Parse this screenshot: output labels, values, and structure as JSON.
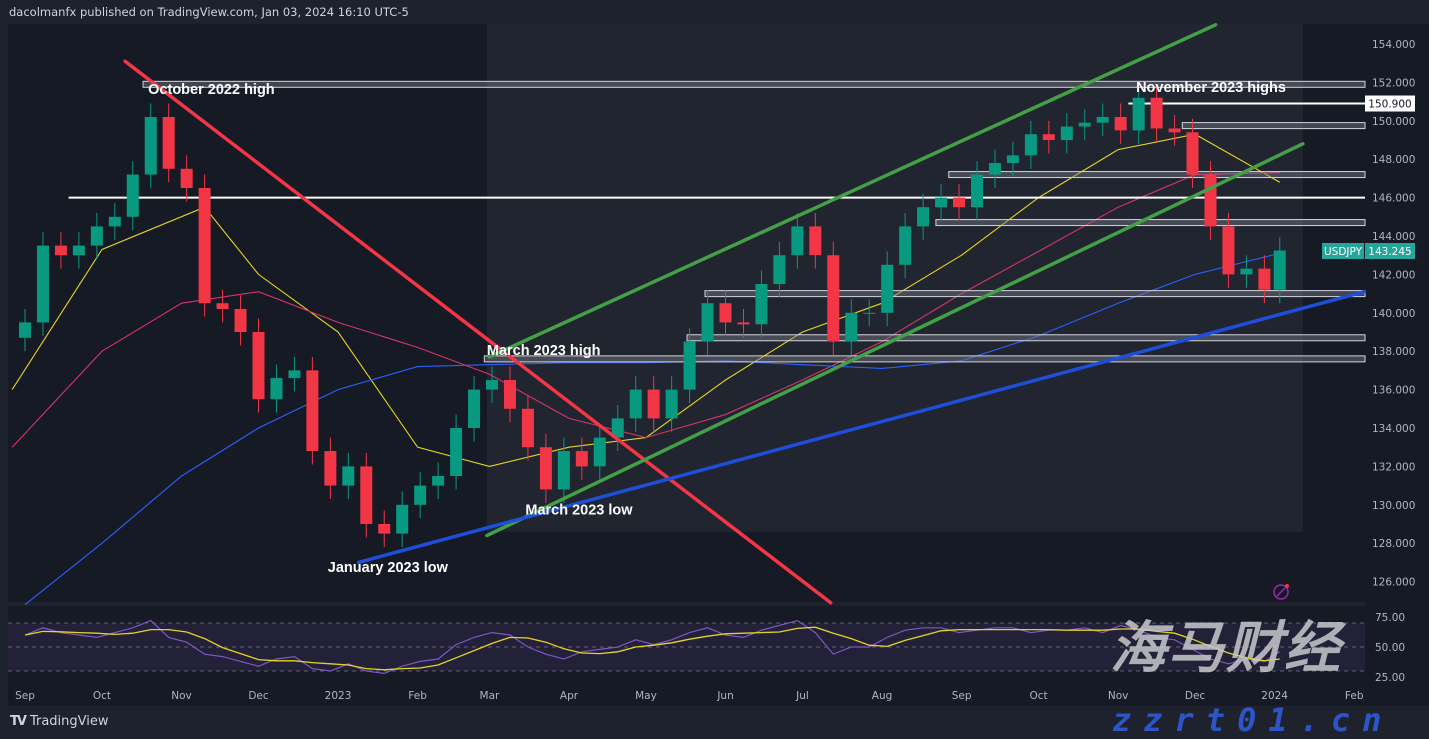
{
  "header": {
    "publisher_text": "dacolmanfx published on TradingView.com, Jan 03, 2024 16:10 UTC-5"
  },
  "footer": {
    "brand": "TradingView",
    "logo_glyph": "TV"
  },
  "watermark": {
    "cn_text": "海马财经",
    "site": "zzrt01.cn"
  },
  "colors": {
    "background": "#161a25",
    "up": "#089981",
    "down": "#f23645",
    "ma50": "#e6d424",
    "ma100": "#d6336c",
    "ma200": "#2962ff",
    "channel": "#43a047",
    "downtrend": "#f23645",
    "uptrend": "#1e4fd8",
    "rsi": "#7e57c2",
    "rsi_ma": "#e6d424",
    "symbol_tag": "#26a69a"
  },
  "chart_data": [
    {
      "type": "candlestick",
      "symbol": "USDJPY",
      "last_price": "143.245",
      "ylim": [
        125,
        155
      ],
      "yticks": [
        "126.000",
        "128.000",
        "130.000",
        "132.000",
        "134.000",
        "136.000",
        "138.000",
        "140.000",
        "142.000",
        "144.000",
        "146.000",
        "148.000",
        "150.000",
        "152.000",
        "154.000"
      ],
      "xticks": [
        {
          "date": "2022-09-01",
          "label": "Sep"
        },
        {
          "date": "2022-10-01",
          "label": "Oct"
        },
        {
          "date": "2022-11-01",
          "label": "Nov"
        },
        {
          "date": "2022-12-01",
          "label": "Dec"
        },
        {
          "date": "2023-01-01",
          "label": "2023"
        },
        {
          "date": "2023-02-01",
          "label": "Feb"
        },
        {
          "date": "2023-03-01",
          "label": "Mar"
        },
        {
          "date": "2023-04-01",
          "label": "Apr"
        },
        {
          "date": "2023-05-01",
          "label": "May"
        },
        {
          "date": "2023-06-01",
          "label": "Jun"
        },
        {
          "date": "2023-07-01",
          "label": "Jul"
        },
        {
          "date": "2023-08-01",
          "label": "Aug"
        },
        {
          "date": "2023-09-01",
          "label": "Sep"
        },
        {
          "date": "2023-10-01",
          "label": "Oct"
        },
        {
          "date": "2023-11-01",
          "label": "Nov"
        },
        {
          "date": "2023-12-01",
          "label": "Dec"
        },
        {
          "date": "2024-01-01",
          "label": "2024"
        },
        {
          "date": "2024-02-01",
          "label": "Feb"
        }
      ],
      "closes": [
        [
          "2022-09-01",
          139.5
        ],
        [
          "2022-09-08",
          143.5
        ],
        [
          "2022-09-15",
          143.0
        ],
        [
          "2022-09-22",
          143.5
        ],
        [
          "2022-09-29",
          144.5
        ],
        [
          "2022-10-06",
          145.0
        ],
        [
          "2022-10-13",
          147.2
        ],
        [
          "2022-10-20",
          150.2
        ],
        [
          "2022-10-27",
          147.5
        ],
        [
          "2022-11-03",
          146.5
        ],
        [
          "2022-11-10",
          140.5
        ],
        [
          "2022-11-17",
          140.2
        ],
        [
          "2022-11-24",
          139.0
        ],
        [
          "2022-12-01",
          135.5
        ],
        [
          "2022-12-08",
          136.6
        ],
        [
          "2022-12-15",
          137.0
        ],
        [
          "2022-12-22",
          132.8
        ],
        [
          "2022-12-29",
          131.0
        ],
        [
          "2023-01-05",
          132.0
        ],
        [
          "2023-01-12",
          129.0
        ],
        [
          "2023-01-19",
          128.5
        ],
        [
          "2023-01-26",
          130.0
        ],
        [
          "2023-02-02",
          131.0
        ],
        [
          "2023-02-09",
          131.5
        ],
        [
          "2023-02-16",
          134.0
        ],
        [
          "2023-02-23",
          136.0
        ],
        [
          "2023-03-02",
          136.5
        ],
        [
          "2023-03-09",
          135.0
        ],
        [
          "2023-03-16",
          133.0
        ],
        [
          "2023-03-23",
          130.8
        ],
        [
          "2023-03-30",
          132.8
        ],
        [
          "2023-04-06",
          132.0
        ],
        [
          "2023-04-13",
          133.5
        ],
        [
          "2023-04-20",
          134.5
        ],
        [
          "2023-04-27",
          136.0
        ],
        [
          "2023-05-04",
          134.5
        ],
        [
          "2023-05-11",
          136.0
        ],
        [
          "2023-05-18",
          138.5
        ],
        [
          "2023-05-25",
          140.5
        ],
        [
          "2023-06-01",
          139.5
        ],
        [
          "2023-06-08",
          139.4
        ],
        [
          "2023-06-15",
          141.5
        ],
        [
          "2023-06-22",
          143.0
        ],
        [
          "2023-06-29",
          144.5
        ],
        [
          "2023-07-06",
          143.0
        ],
        [
          "2023-07-13",
          138.5
        ],
        [
          "2023-07-20",
          140.0
        ],
        [
          "2023-07-27",
          140.0
        ],
        [
          "2023-08-03",
          142.5
        ],
        [
          "2023-08-10",
          144.5
        ],
        [
          "2023-08-17",
          145.5
        ],
        [
          "2023-08-24",
          146.0
        ],
        [
          "2023-08-31",
          145.5
        ],
        [
          "2023-09-07",
          147.2
        ],
        [
          "2023-09-14",
          147.8
        ],
        [
          "2023-09-21",
          148.2
        ],
        [
          "2023-09-28",
          149.3
        ],
        [
          "2023-10-05",
          149.0
        ],
        [
          "2023-10-12",
          149.7
        ],
        [
          "2023-10-19",
          149.9
        ],
        [
          "2023-10-26",
          150.2
        ],
        [
          "2023-11-02",
          149.5
        ],
        [
          "2023-11-09",
          151.2
        ],
        [
          "2023-11-16",
          149.6
        ],
        [
          "2023-11-23",
          149.4
        ],
        [
          "2023-11-30",
          147.2
        ],
        [
          "2023-12-07",
          144.5
        ],
        [
          "2023-12-14",
          142.0
        ],
        [
          "2023-12-21",
          142.3
        ],
        [
          "2023-12-28",
          141.2
        ],
        [
          "2024-01-03",
          143.245
        ]
      ],
      "moving_averages": [
        {
          "key": "ma50",
          "points": [
            [
              "2022-08-27",
              136.0
            ],
            [
              "2022-10-01",
              143.3
            ],
            [
              "2022-11-10",
              145.5
            ],
            [
              "2022-12-01",
              142.0
            ],
            [
              "2023-01-01",
              139.0
            ],
            [
              "2023-02-01",
              133.0
            ],
            [
              "2023-03-01",
              132.0
            ],
            [
              "2023-04-01",
              133.0
            ],
            [
              "2023-05-01",
              133.5
            ],
            [
              "2023-06-01",
              136.5
            ],
            [
              "2023-07-01",
              139.0
            ],
            [
              "2023-08-01",
              140.5
            ],
            [
              "2023-09-01",
              143.0
            ],
            [
              "2023-10-01",
              146.0
            ],
            [
              "2023-11-01",
              148.5
            ],
            [
              "2023-12-01",
              149.3
            ],
            [
              "2024-01-03",
              146.8
            ]
          ]
        },
        {
          "key": "ma100",
          "points": [
            [
              "2022-08-27",
              133.0
            ],
            [
              "2022-10-01",
              138.0
            ],
            [
              "2022-11-01",
              140.5
            ],
            [
              "2022-12-01",
              141.1
            ],
            [
              "2023-01-01",
              139.5
            ],
            [
              "2023-02-01",
              138.2
            ],
            [
              "2023-03-01",
              136.8
            ],
            [
              "2023-04-01",
              134.5
            ],
            [
              "2023-05-01",
              133.5
            ],
            [
              "2023-06-01",
              134.7
            ],
            [
              "2023-07-01",
              136.5
            ],
            [
              "2023-08-01",
              138.5
            ],
            [
              "2023-09-01",
              141.0
            ],
            [
              "2023-10-01",
              143.2
            ],
            [
              "2023-11-01",
              145.5
            ],
            [
              "2023-12-01",
              147.2
            ],
            [
              "2024-01-03",
              147.3
            ]
          ]
        },
        {
          "key": "ma200",
          "points": [
            [
              "2022-09-01",
              124.8
            ],
            [
              "2022-10-01",
              128.0
            ],
            [
              "2022-11-01",
              131.5
            ],
            [
              "2022-12-01",
              134.0
            ],
            [
              "2023-01-01",
              136.0
            ],
            [
              "2023-02-01",
              137.2
            ],
            [
              "2023-03-01",
              137.3
            ],
            [
              "2023-04-01",
              137.4
            ],
            [
              "2023-05-01",
              137.4
            ],
            [
              "2023-06-01",
              137.5
            ],
            [
              "2023-07-01",
              137.3
            ],
            [
              "2023-08-01",
              137.1
            ],
            [
              "2023-09-01",
              137.5
            ],
            [
              "2023-10-01",
              138.8
            ],
            [
              "2023-11-01",
              140.5
            ],
            [
              "2023-12-01",
              142.0
            ],
            [
              "2024-01-03",
              143.1
            ]
          ]
        }
      ],
      "trendlines": [
        {
          "key": "downtrend",
          "from": [
            "2022-10-10",
            153.1
          ],
          "to": [
            "2023-07-12",
            124.9
          ]
        },
        {
          "key": "channel",
          "from": [
            "2023-02-28",
            128.4
          ],
          "to": [
            "2024-01-12",
            148.8
          ]
        },
        {
          "key": "channel",
          "from": [
            "2023-03-01",
            137.7
          ],
          "to": [
            "2023-12-09",
            155.0
          ]
        },
        {
          "key": "uptrend",
          "from": [
            "2023-01-09",
            127.0
          ],
          "to": [
            "2024-02-05",
            141.1
          ]
        }
      ],
      "shaded_zone": {
        "from": "2023-02-28",
        "to": "2024-01-12",
        "low": 128.6,
        "high": 155
      },
      "levels": [
        {
          "price": 151.9,
          "from": "2022-10-17",
          "style": "band"
        },
        {
          "price": 150.9,
          "from": "2023-11-05",
          "style": "line",
          "label": "150.900"
        },
        {
          "price": 149.75,
          "from": "2023-11-26",
          "style": "band"
        },
        {
          "price": 147.2,
          "from": "2023-08-27",
          "style": "band"
        },
        {
          "price": 146.0,
          "from": "2022-09-18",
          "style": "line"
        },
        {
          "price": 144.7,
          "from": "2023-08-22",
          "style": "band"
        },
        {
          "price": 141.0,
          "from": "2023-05-24",
          "style": "band"
        },
        {
          "price": 138.7,
          "from": "2023-05-17",
          "style": "band"
        },
        {
          "price": 137.6,
          "from": "2023-02-27",
          "style": "band"
        }
      ],
      "annotations": [
        {
          "text": "October 2022 high",
          "date": "2022-10-19",
          "price": 151.4
        },
        {
          "text": "November 2023 highs",
          "date": "2023-11-08",
          "price": 151.5
        },
        {
          "text": "March 2023 high",
          "date": "2023-02-28",
          "price": 137.8
        },
        {
          "text": "March 2023 low",
          "date": "2023-03-15",
          "price": 129.5
        },
        {
          "text": "January 2023 low",
          "date": "2022-12-28",
          "price": 126.5
        }
      ]
    },
    {
      "type": "line",
      "indicator": "RSI",
      "ylim": [
        20,
        80
      ],
      "yticks": [
        "75.00",
        "50.00",
        "25.00"
      ],
      "bands": [
        70,
        50,
        30
      ],
      "rsi": [
        60,
        66,
        62,
        60,
        58,
        62,
        66,
        72,
        58,
        54,
        44,
        42,
        38,
        34,
        40,
        42,
        32,
        30,
        36,
        30,
        28,
        34,
        38,
        40,
        52,
        58,
        62,
        60,
        50,
        44,
        40,
        46,
        48,
        50,
        56,
        52,
        56,
        62,
        66,
        60,
        58,
        64,
        68,
        72,
        62,
        44,
        50,
        50,
        58,
        64,
        66,
        66,
        62,
        64,
        66,
        66,
        62,
        64,
        64,
        66,
        62,
        68,
        64,
        58,
        56,
        48,
        40,
        36,
        40,
        38,
        46
      ]
    }
  ]
}
